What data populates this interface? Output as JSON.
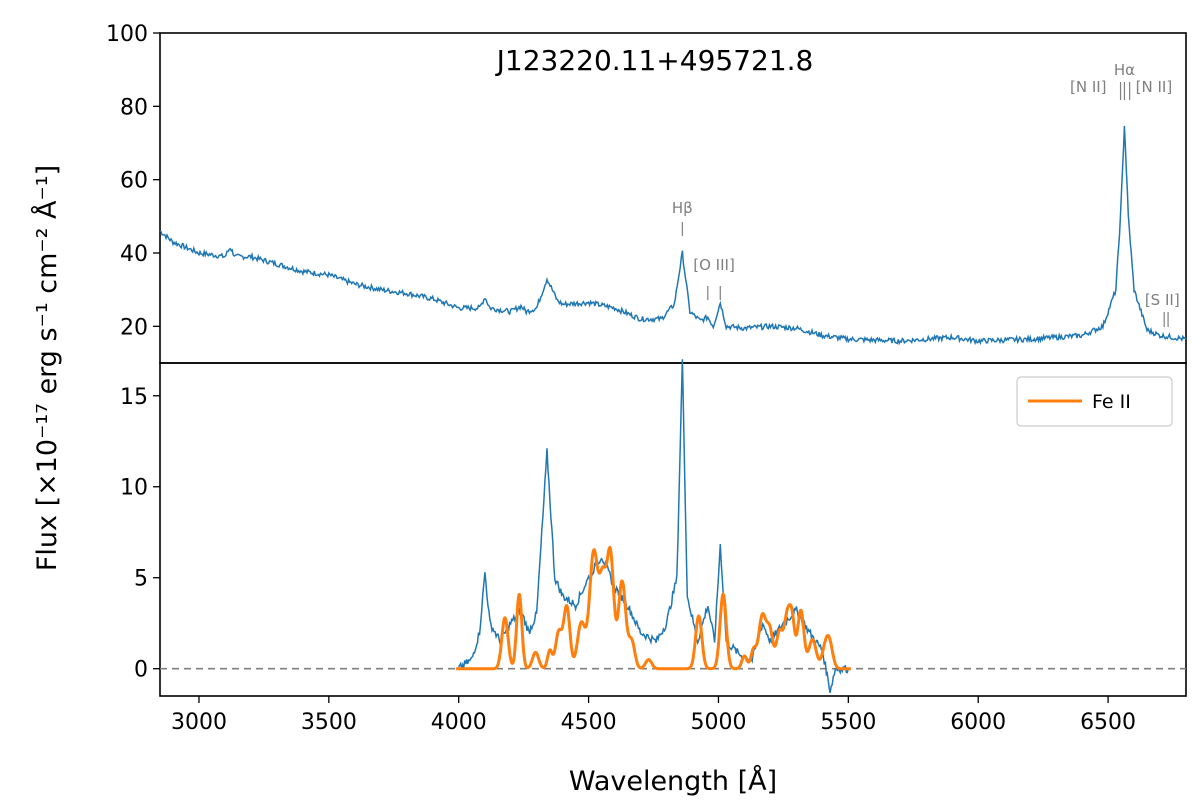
{
  "chart_data": [
    {
      "type": "line",
      "panel": "top",
      "title": "J123220.11+495721.8",
      "xlim": [
        2850,
        6800
      ],
      "ylim": [
        10,
        100
      ],
      "yticks": [
        20,
        40,
        60,
        80,
        100
      ],
      "series": [
        {
          "color": "#1f77b4",
          "anchors": [
            [
              2850,
              46
            ],
            [
              2900,
              43
            ],
            [
              3000,
              40
            ],
            [
              3100,
              39
            ],
            [
              3120,
              41.5
            ],
            [
              3140,
              39
            ],
            [
              3200,
              39
            ],
            [
              3300,
              37
            ],
            [
              3400,
              35
            ],
            [
              3500,
              34
            ],
            [
              3600,
              31.5
            ],
            [
              3700,
              30
            ],
            [
              3800,
              29
            ],
            [
              3900,
              27.5
            ],
            [
              4000,
              25
            ],
            [
              4080,
              25
            ],
            [
              4101,
              28
            ],
            [
              4120,
              25
            ],
            [
              4200,
              24
            ],
            [
              4240,
              25.5
            ],
            [
              4260,
              24
            ],
            [
              4300,
              25
            ],
            [
              4340,
              33
            ],
            [
              4380,
              27
            ],
            [
              4400,
              26
            ],
            [
              4500,
              26.5
            ],
            [
              4600,
              25
            ],
            [
              4700,
              22
            ],
            [
              4780,
              22
            ],
            [
              4830,
              26
            ],
            [
              4861,
              40
            ],
            [
              4890,
              24
            ],
            [
              4930,
              21.5
            ],
            [
              4959,
              22.5
            ],
            [
              4980,
              20
            ],
            [
              5007,
              26.5
            ],
            [
              5030,
              20
            ],
            [
              5100,
              19.5
            ],
            [
              5200,
              20
            ],
            [
              5300,
              19.5
            ],
            [
              5400,
              17.5
            ],
            [
              5500,
              16.5
            ],
            [
              5700,
              16
            ],
            [
              5900,
              17
            ],
            [
              6000,
              16
            ],
            [
              6200,
              16.5
            ],
            [
              6400,
              17.5
            ],
            [
              6480,
              20
            ],
            [
              6530,
              30
            ],
            [
              6548,
              50
            ],
            [
              6563,
              75
            ],
            [
              6578,
              50
            ],
            [
              6600,
              30
            ],
            [
              6650,
              19
            ],
            [
              6700,
              17.5
            ],
            [
              6800,
              16.5
            ]
          ]
        }
      ],
      "line_labels": [
        {
          "text": "Hβ",
          "x": 4861
        },
        {
          "text": "[O III]",
          "x": 4983
        },
        {
          "text": "[N II]",
          "x": 6548
        },
        {
          "text": "Hα",
          "x": 6563
        },
        {
          "text": "[N II]",
          "x": 6583
        },
        {
          "text": "[S II]",
          "x": 6724
        }
      ]
    },
    {
      "type": "line",
      "panel": "bottom",
      "xlim": [
        2850,
        6800
      ],
      "ylim": [
        -1.5,
        16.8
      ],
      "xticks": [
        3000,
        3500,
        4000,
        4500,
        5000,
        5500,
        6000,
        6500
      ],
      "yticks": [
        0,
        5,
        10,
        15
      ],
      "zero_line": true,
      "legend": {
        "placement": "top-right"
      },
      "series": [
        {
          "color": "#1f77b4",
          "anchors": [
            [
              4000,
              0
            ],
            [
              4050,
              0.5
            ],
            [
              4080,
              2
            ],
            [
              4101,
              5.3
            ],
            [
              4120,
              2.5
            ],
            [
              4160,
              1.5
            ],
            [
              4200,
              2.5
            ],
            [
              4240,
              3.2
            ],
            [
              4270,
              2
            ],
            [
              4300,
              3
            ],
            [
              4340,
              11.9
            ],
            [
              4370,
              5
            ],
            [
              4400,
              4
            ],
            [
              4450,
              3.5
            ],
            [
              4500,
              5
            ],
            [
              4550,
              6.2
            ],
            [
              4600,
              4.5
            ],
            [
              4650,
              3.5
            ],
            [
              4700,
              2
            ],
            [
              4760,
              1.5
            ],
            [
              4800,
              2.5
            ],
            [
              4840,
              5
            ],
            [
              4861,
              17
            ],
            [
              4880,
              4
            ],
            [
              4920,
              1.5
            ],
            [
              4959,
              3.5
            ],
            [
              4985,
              1.5
            ],
            [
              5007,
              6.8
            ],
            [
              5030,
              1.5
            ],
            [
              5080,
              0.8
            ],
            [
              5130,
              0.5
            ],
            [
              5170,
              2.5
            ],
            [
              5200,
              1.5
            ],
            [
              5250,
              2.5
            ],
            [
              5300,
              3.2
            ],
            [
              5350,
              2
            ],
            [
              5400,
              1
            ],
            [
              5430,
              -1.2
            ],
            [
              5450,
              0
            ],
            [
              5500,
              0
            ]
          ]
        },
        {
          "name": "Fe II",
          "color": "#ff7f0e",
          "peaks": [
            [
              4178,
              2.8,
              12
            ],
            [
              4233,
              4.1,
              10
            ],
            [
              4296,
              0.9,
              12
            ],
            [
              4351,
              1.0,
              9
            ],
            [
              4385,
              2.0,
              12
            ],
            [
              4416,
              3.4,
              12
            ],
            [
              4472,
              2.5,
              15
            ],
            [
              4520,
              6.4,
              16
            ],
            [
              4555,
              4.5,
              13
            ],
            [
              4584,
              6.2,
              13
            ],
            [
              4629,
              4.8,
              14
            ],
            [
              4666,
              1.5,
              12
            ],
            [
              4731,
              0.5,
              12
            ],
            [
              4924,
              2.9,
              12
            ],
            [
              5018,
              4.1,
              12
            ],
            [
              5100,
              0.7,
              10
            ],
            [
              5135,
              1.0,
              10
            ],
            [
              5169,
              2.9,
              14
            ],
            [
              5198,
              2.0,
              12
            ],
            [
              5235,
              2.0,
              12
            ],
            [
              5265,
              2.8,
              12
            ],
            [
              5284,
              2.3,
              10
            ],
            [
              5317,
              3.2,
              12
            ],
            [
              5362,
              1.6,
              14
            ],
            [
              5414,
              1.3,
              14
            ],
            [
              5430,
              0.9,
              12
            ]
          ],
          "range": [
            3990,
            5510
          ]
        }
      ]
    }
  ],
  "shared": {
    "xlabel": "Wavelength [Å]",
    "ylabel": "Flux [×10⁻¹⁷ erg s⁻¹ cm⁻² Å⁻¹]"
  }
}
